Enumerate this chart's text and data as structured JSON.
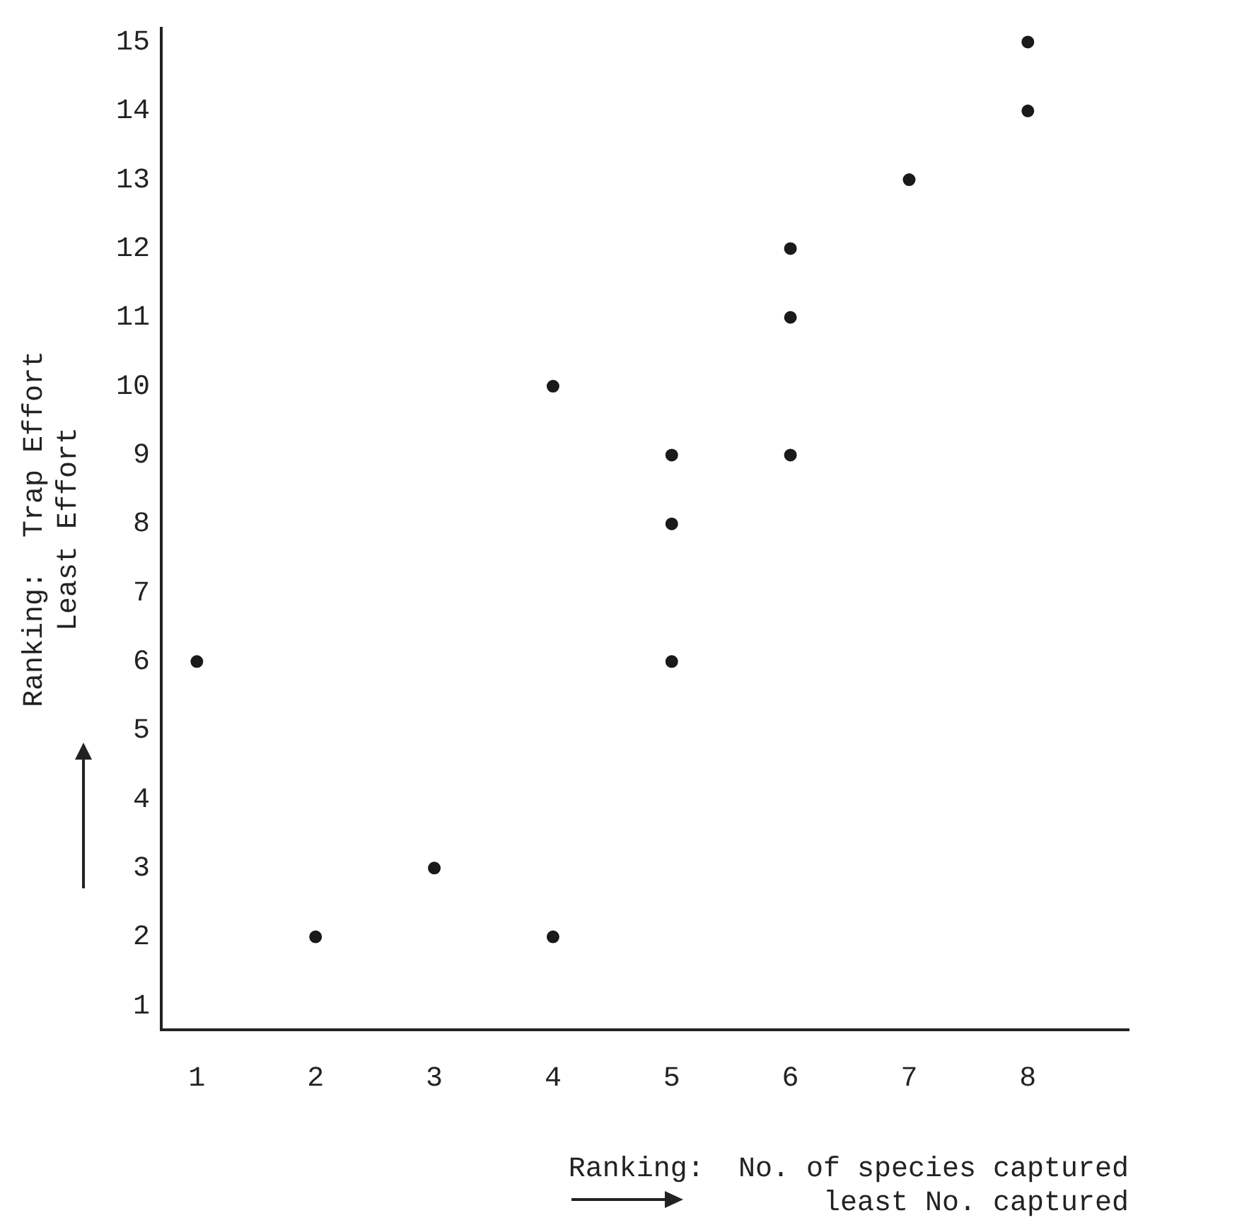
{
  "chart_data": {
    "type": "scatter",
    "xlabel": "Ranking:  No. of species captured\nleast No. captured",
    "ylabel": "Ranking:  Trap Effort\nLeast Effort",
    "x": [
      1,
      2,
      3,
      4,
      4,
      5,
      5,
      5,
      6,
      6,
      6,
      7,
      8,
      8
    ],
    "series": [
      {
        "color": "#1a1a1a",
        "values": [
          6,
          2,
          3,
          10,
          2,
          9,
          8,
          6,
          12,
          11,
          9,
          13,
          15,
          14
        ]
      }
    ],
    "xlim": [
      0.7,
      8.85
    ],
    "xticks": [
      1,
      2,
      3,
      4,
      5,
      6,
      7,
      8
    ],
    "ylim": [
      0.65,
      15.2
    ],
    "yticks": [
      1,
      2,
      3,
      4,
      5,
      6,
      7,
      8,
      9,
      10,
      11,
      12,
      13,
      14,
      15
    ],
    "grid": false,
    "legend": false,
    "marker": "circle"
  }
}
